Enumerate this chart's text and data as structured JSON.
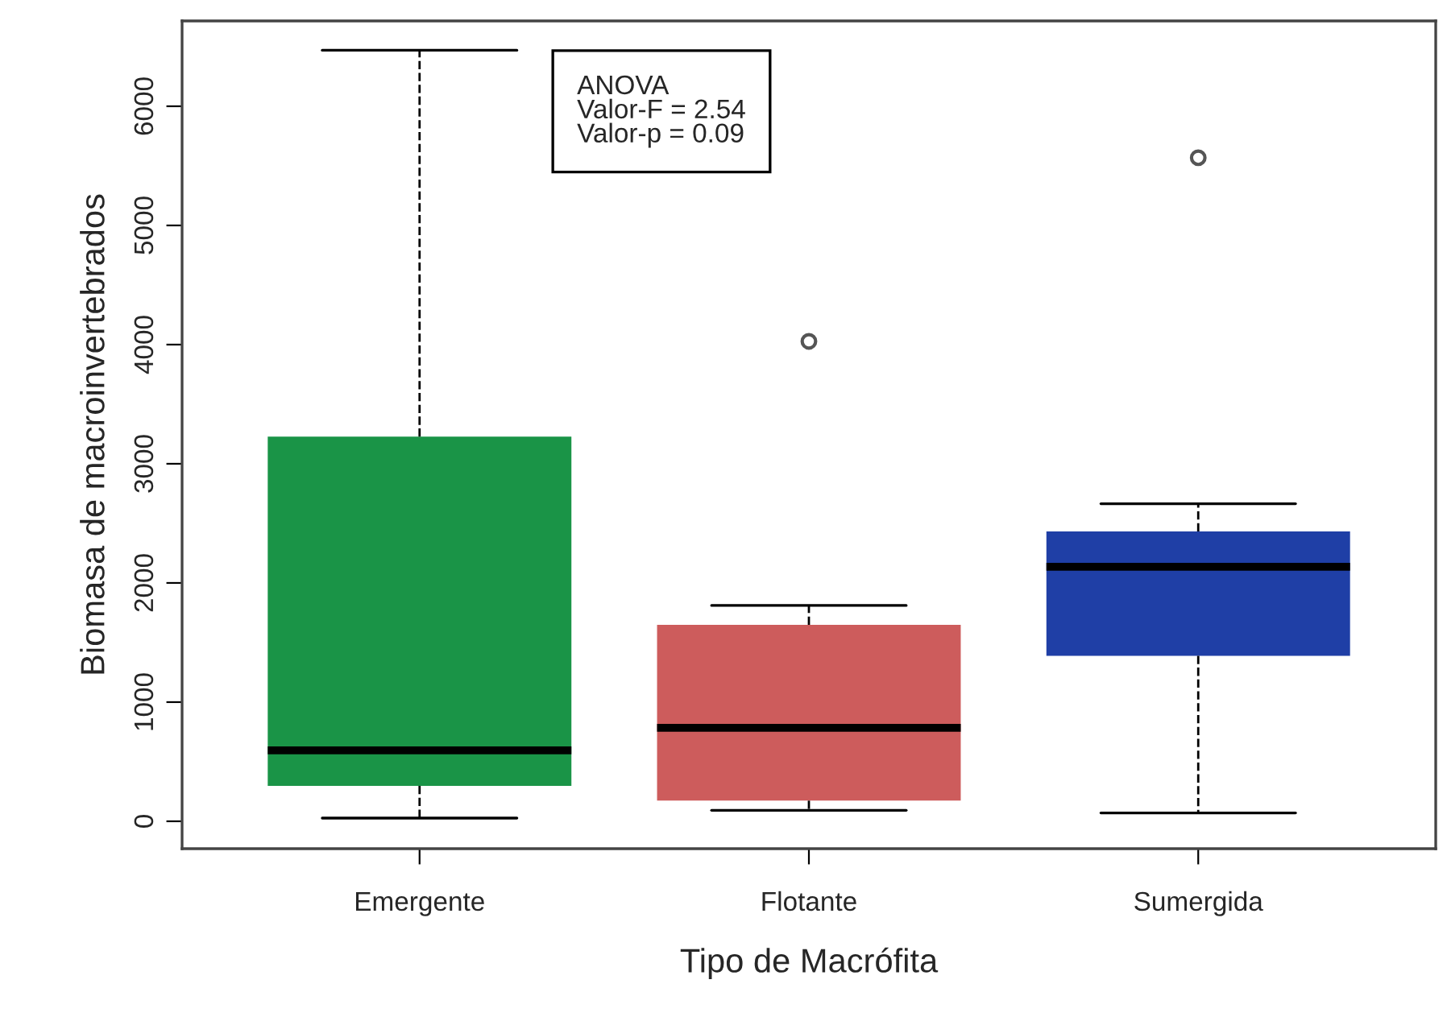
{
  "chart_data": {
    "type": "box",
    "xlabel": "Tipo de Macrófita",
    "ylabel": "Biomasa de macroinvertebrados",
    "categories": [
      "Emergente",
      "Flotante",
      "Sumergida"
    ],
    "boxes": [
      {
        "low": 27,
        "q1": 297,
        "median": 595,
        "q3": 3227,
        "high": 6470
      },
      {
        "low": 92,
        "q1": 173,
        "median": 784,
        "q3": 1649,
        "high": 1811,
        "outliers": [
          4027
        ]
      },
      {
        "low": 70,
        "q1": 1389,
        "median": 2135,
        "q3": 2432,
        "high": 2665,
        "outliers": [
          5568
        ]
      }
    ],
    "colors": [
      "#1a9447",
      "#cd5c5c",
      "#1f3fa6"
    ],
    "ylim": [
      -230,
      6716
    ],
    "yticks": [
      0,
      1000,
      2000,
      3000,
      4000,
      5000,
      6000
    ],
    "annotations": [
      "ANOVA\nValor-F = 2.54\nValor-p = 0.09"
    ],
    "grid": false,
    "line_style": "dashed"
  }
}
